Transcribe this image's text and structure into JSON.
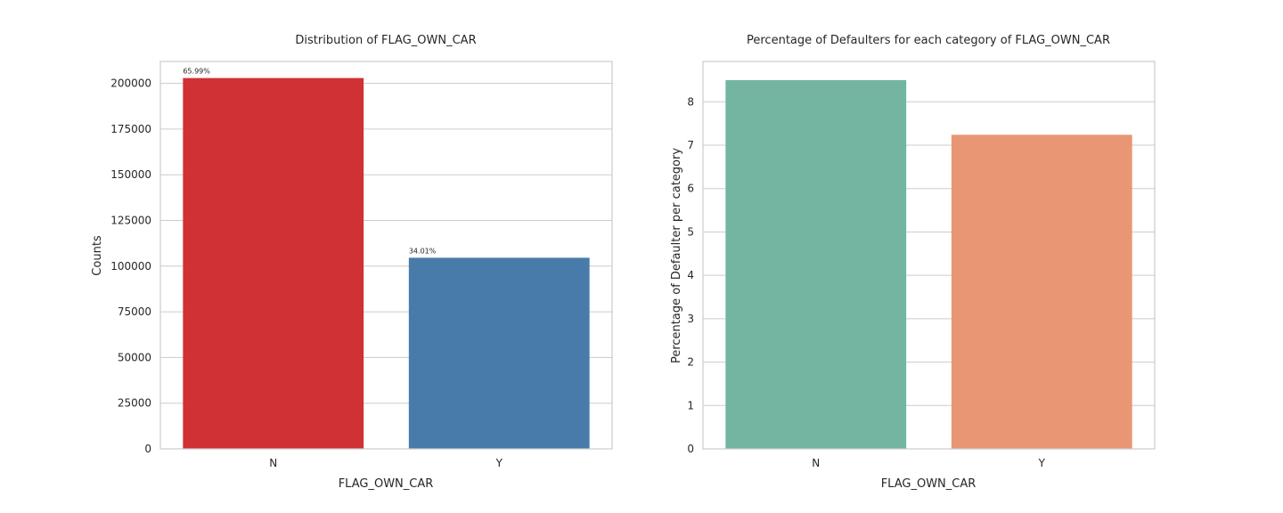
{
  "chart_data": [
    {
      "type": "bar",
      "title": "Distribution of FLAG_OWN_CAR",
      "xlabel": "FLAG_OWN_CAR",
      "ylabel": "Counts",
      "categories": [
        "N",
        "Y"
      ],
      "values": [
        202924,
        104587
      ],
      "value_labels": [
        "65.99%",
        "34.01%"
      ],
      "ylim": [
        0,
        212000
      ],
      "yticks": [
        0,
        25000,
        50000,
        75000,
        100000,
        125000,
        150000,
        175000,
        200000
      ],
      "colors": [
        "#d03135",
        "#487baa"
      ],
      "grid": true
    },
    {
      "type": "bar",
      "title": "Percentage of Defaulters for each category of FLAG_OWN_CAR",
      "xlabel": "FLAG_OWN_CAR",
      "ylabel": "Percentage of Defaulter per category",
      "categories": [
        "N",
        "Y"
      ],
      "values": [
        8.5,
        7.24
      ],
      "ylim": [
        0,
        8.93
      ],
      "yticks": [
        0,
        1,
        2,
        3,
        4,
        5,
        6,
        7,
        8
      ],
      "colors": [
        "#73b5a0",
        "#e99675"
      ],
      "grid": true
    }
  ]
}
